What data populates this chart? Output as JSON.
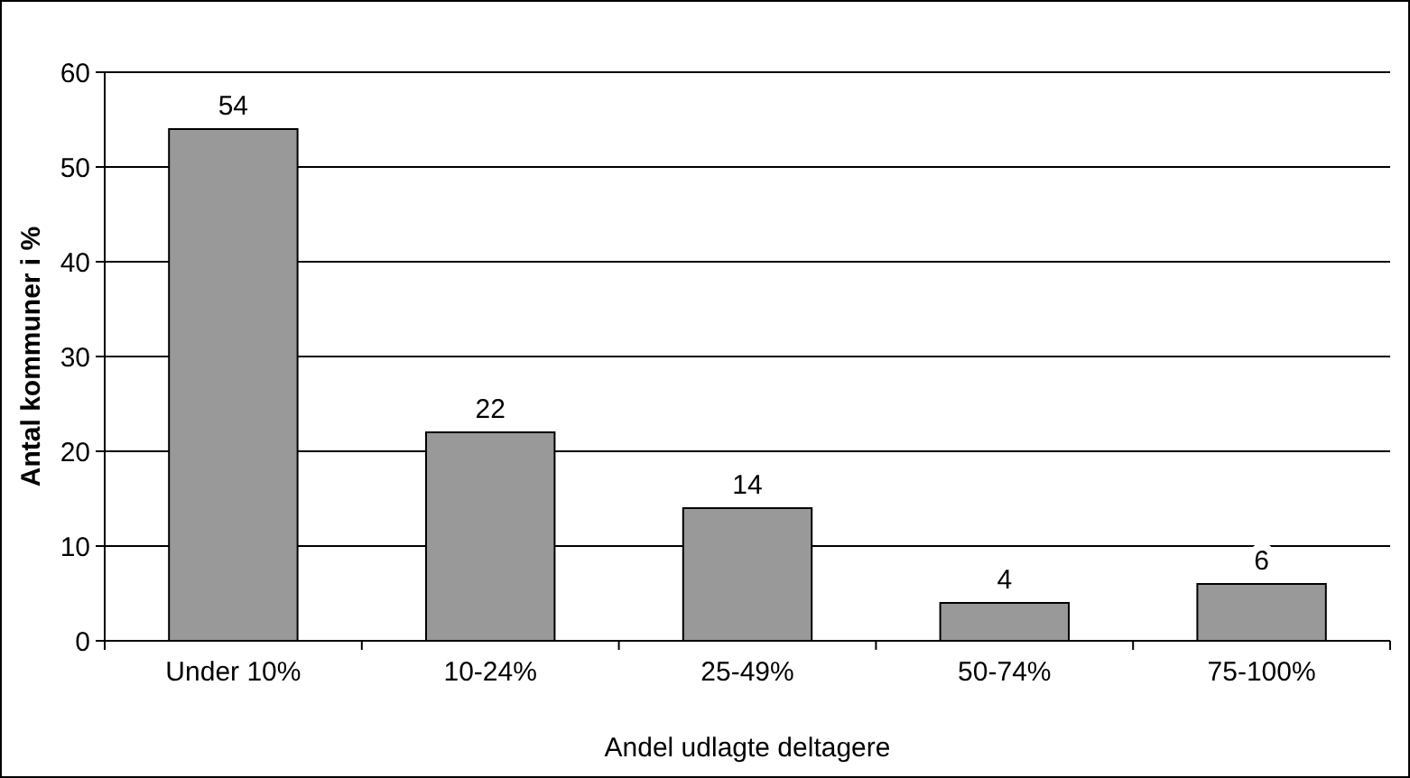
{
  "chart_data": {
    "type": "bar",
    "xlabel": "Andel udlagte deltagere",
    "ylabel": "Antal kommuner i %",
    "categories": [
      "Under 10%",
      "10-24%",
      "25-49%",
      "50-74%",
      "75-100%"
    ],
    "values": [
      54,
      22,
      14,
      4,
      6
    ],
    "color": "#999999",
    "ylim": [
      0,
      60
    ],
    "yticks": [
      0,
      10,
      20,
      30,
      40,
      50,
      60
    ],
    "grid": "y",
    "data_labels": true
  }
}
